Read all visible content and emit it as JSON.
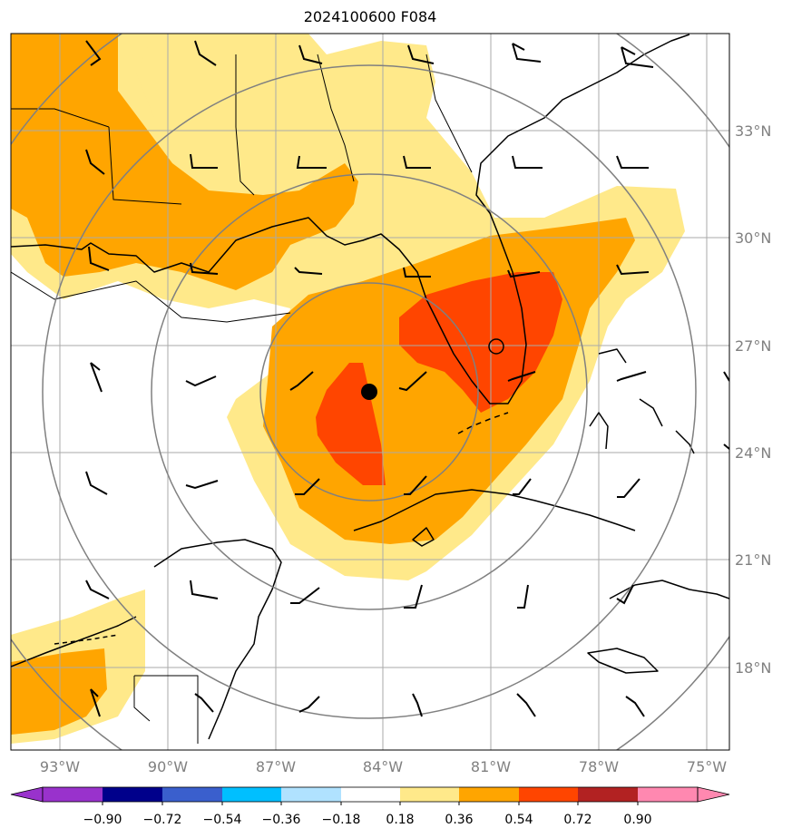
{
  "title": "2024100600 F084",
  "map": {
    "lon_labels": [
      "93°W",
      "90°W",
      "87°W",
      "84°W",
      "81°W",
      "78°W",
      "75°W"
    ],
    "lat_labels": [
      "33°N",
      "30°N",
      "27°N",
      "24°N",
      "21°N",
      "18°N"
    ],
    "center_marker": {
      "lon": -84.4,
      "lat": 25.7
    }
  },
  "colorbar": {
    "ticks": [
      "−0.90",
      "−0.72",
      "−0.54",
      "−0.36",
      "−0.18",
      "0.18",
      "0.36",
      "0.54",
      "0.72",
      "0.90"
    ],
    "colors": [
      "#9932cc",
      "#00008b",
      "#3a5fcd",
      "#00bfff",
      "#b0e2ff",
      "#ffffff",
      "#ffe98a",
      "#ffa500",
      "#ff4500",
      "#b22222",
      "#ff88b0"
    ]
  },
  "colors": {
    "low": "#ffe98a",
    "mid": "#ffa500",
    "high": "#ff4500",
    "grid": "#aaaaaa",
    "range_rings": "#808080"
  }
}
